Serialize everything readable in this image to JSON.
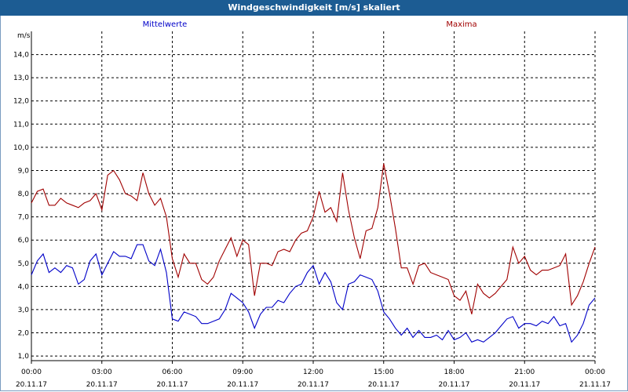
{
  "window": {
    "title": "Windgeschwindigkeit [m/s] skaliert"
  },
  "chart_data": {
    "type": "line",
    "ylabel": "m/s",
    "ylim": [
      0.8,
      15.0
    ],
    "y_ticks": [
      "1,0",
      "2,0",
      "3,0",
      "4,0",
      "5,0",
      "6,0",
      "7,0",
      "8,0",
      "9,0",
      "10,0",
      "11,0",
      "12,0",
      "13,0",
      "14,0"
    ],
    "x_ticks": [
      {
        "time": "00:00",
        "date": "20.11.17"
      },
      {
        "time": "03:00",
        "date": "20.11.17"
      },
      {
        "time": "06:00",
        "date": "20.11.17"
      },
      {
        "time": "09:00",
        "date": "20.11.17"
      },
      {
        "time": "12:00",
        "date": "20.11.17"
      },
      {
        "time": "15:00",
        "date": "20.11.17"
      },
      {
        "time": "18:00",
        "date": "20.11.17"
      },
      {
        "time": "21:00",
        "date": "20.11.17"
      },
      {
        "time": "00:00",
        "date": "21.11.17"
      }
    ],
    "xlim_hours": [
      0,
      24
    ],
    "grid": true,
    "series": [
      {
        "name": "Mittelwerte",
        "color": "#0000c8",
        "points": [
          [
            0,
            4.5
          ],
          [
            0.25,
            5.1
          ],
          [
            0.5,
            5.4
          ],
          [
            0.75,
            4.6
          ],
          [
            1,
            4.8
          ],
          [
            1.25,
            4.6
          ],
          [
            1.5,
            4.9
          ],
          [
            1.75,
            4.8
          ],
          [
            2,
            4.1
          ],
          [
            2.25,
            4.3
          ],
          [
            2.5,
            5.1
          ],
          [
            2.75,
            5.4
          ],
          [
            3,
            4.5
          ],
          [
            3.25,
            5.0
          ],
          [
            3.5,
            5.5
          ],
          [
            3.75,
            5.3
          ],
          [
            4,
            5.3
          ],
          [
            4.25,
            5.2
          ],
          [
            4.5,
            5.8
          ],
          [
            4.75,
            5.8
          ],
          [
            5,
            5.1
          ],
          [
            5.25,
            4.9
          ],
          [
            5.5,
            5.6
          ],
          [
            5.75,
            4.6
          ],
          [
            6,
            2.6
          ],
          [
            6.25,
            2.5
          ],
          [
            6.5,
            2.9
          ],
          [
            6.75,
            2.8
          ],
          [
            7,
            2.7
          ],
          [
            7.25,
            2.4
          ],
          [
            7.5,
            2.4
          ],
          [
            7.75,
            2.5
          ],
          [
            8,
            2.6
          ],
          [
            8.25,
            3.0
          ],
          [
            8.5,
            3.7
          ],
          [
            8.75,
            3.5
          ],
          [
            9,
            3.3
          ],
          [
            9.25,
            2.9
          ],
          [
            9.5,
            2.2
          ],
          [
            9.75,
            2.8
          ],
          [
            10,
            3.1
          ],
          [
            10.25,
            3.1
          ],
          [
            10.5,
            3.4
          ],
          [
            10.75,
            3.3
          ],
          [
            11,
            3.7
          ],
          [
            11.25,
            4.0
          ],
          [
            11.5,
            4.1
          ],
          [
            11.75,
            4.6
          ],
          [
            12,
            4.9
          ],
          [
            12.25,
            4.1
          ],
          [
            12.5,
            4.6
          ],
          [
            12.75,
            4.2
          ],
          [
            13,
            3.3
          ],
          [
            13.25,
            3.0
          ],
          [
            13.5,
            4.1
          ],
          [
            13.75,
            4.2
          ],
          [
            14,
            4.5
          ],
          [
            14.25,
            4.4
          ],
          [
            14.5,
            4.3
          ],
          [
            14.75,
            3.8
          ],
          [
            15,
            2.9
          ],
          [
            15.25,
            2.6
          ],
          [
            15.5,
            2.2
          ],
          [
            15.75,
            1.9
          ],
          [
            16,
            2.2
          ],
          [
            16.25,
            1.8
          ],
          [
            16.5,
            2.1
          ],
          [
            16.75,
            1.8
          ],
          [
            17,
            1.8
          ],
          [
            17.25,
            1.9
          ],
          [
            17.5,
            1.7
          ],
          [
            17.75,
            2.1
          ],
          [
            18,
            1.7
          ],
          [
            18.25,
            1.8
          ],
          [
            18.5,
            2.0
          ],
          [
            18.75,
            1.6
          ],
          [
            19,
            1.7
          ],
          [
            19.25,
            1.6
          ],
          [
            19.5,
            1.8
          ],
          [
            19.75,
            2.0
          ],
          [
            20,
            2.3
          ],
          [
            20.25,
            2.6
          ],
          [
            20.5,
            2.7
          ],
          [
            20.75,
            2.2
          ],
          [
            21,
            2.4
          ],
          [
            21.25,
            2.4
          ],
          [
            21.5,
            2.3
          ],
          [
            21.75,
            2.5
          ],
          [
            22,
            2.4
          ],
          [
            22.25,
            2.7
          ],
          [
            22.5,
            2.3
          ],
          [
            22.75,
            2.4
          ],
          [
            23,
            1.6
          ],
          [
            23.25,
            1.9
          ],
          [
            23.5,
            2.4
          ],
          [
            23.75,
            3.2
          ],
          [
            24,
            3.5
          ]
        ]
      },
      {
        "name": "Maxima",
        "color": "#a00000",
        "points": [
          [
            0,
            7.6
          ],
          [
            0.25,
            8.1
          ],
          [
            0.5,
            8.2
          ],
          [
            0.75,
            7.5
          ],
          [
            1,
            7.5
          ],
          [
            1.25,
            7.8
          ],
          [
            1.5,
            7.6
          ],
          [
            1.75,
            7.5
          ],
          [
            2,
            7.4
          ],
          [
            2.25,
            7.6
          ],
          [
            2.5,
            7.7
          ],
          [
            2.75,
            8.0
          ],
          [
            3,
            7.3
          ],
          [
            3.25,
            8.8
          ],
          [
            3.5,
            9.0
          ],
          [
            3.75,
            8.6
          ],
          [
            4,
            8.0
          ],
          [
            4.25,
            7.9
          ],
          [
            4.5,
            7.7
          ],
          [
            4.75,
            8.9
          ],
          [
            5,
            8.0
          ],
          [
            5.25,
            7.5
          ],
          [
            5.5,
            7.8
          ],
          [
            5.75,
            7.0
          ],
          [
            6,
            5.2
          ],
          [
            6.25,
            4.4
          ],
          [
            6.5,
            5.4
          ],
          [
            6.75,
            5.0
          ],
          [
            7,
            5.0
          ],
          [
            7.25,
            4.3
          ],
          [
            7.5,
            4.1
          ],
          [
            7.75,
            4.4
          ],
          [
            8,
            5.1
          ],
          [
            8.25,
            5.6
          ],
          [
            8.5,
            6.1
          ],
          [
            8.75,
            5.3
          ],
          [
            9,
            6.0
          ],
          [
            9.25,
            5.8
          ],
          [
            9.5,
            3.6
          ],
          [
            9.75,
            5.0
          ],
          [
            10,
            5.0
          ],
          [
            10.25,
            4.9
          ],
          [
            10.5,
            5.5
          ],
          [
            10.75,
            5.6
          ],
          [
            11,
            5.5
          ],
          [
            11.25,
            6.0
          ],
          [
            11.5,
            6.3
          ],
          [
            11.75,
            6.4
          ],
          [
            12,
            7.0
          ],
          [
            12.25,
            8.1
          ],
          [
            12.5,
            7.2
          ],
          [
            12.75,
            7.4
          ],
          [
            13,
            6.8
          ],
          [
            13.25,
            8.9
          ],
          [
            13.5,
            7.3
          ],
          [
            13.75,
            6.1
          ],
          [
            14,
            5.2
          ],
          [
            14.25,
            6.4
          ],
          [
            14.5,
            6.5
          ],
          [
            14.75,
            7.4
          ],
          [
            15,
            9.3
          ],
          [
            15.25,
            8.0
          ],
          [
            15.5,
            6.5
          ],
          [
            15.75,
            4.8
          ],
          [
            16,
            4.8
          ],
          [
            16.25,
            4.1
          ],
          [
            16.5,
            4.9
          ],
          [
            16.75,
            5.0
          ],
          [
            17,
            4.6
          ],
          [
            17.25,
            4.5
          ],
          [
            17.5,
            4.4
          ],
          [
            17.75,
            4.3
          ],
          [
            18,
            3.6
          ],
          [
            18.25,
            3.4
          ],
          [
            18.5,
            3.8
          ],
          [
            18.75,
            2.8
          ],
          [
            19,
            4.1
          ],
          [
            19.25,
            3.7
          ],
          [
            19.5,
            3.5
          ],
          [
            19.75,
            3.7
          ],
          [
            20,
            4.0
          ],
          [
            20.25,
            4.3
          ],
          [
            20.5,
            5.7
          ],
          [
            20.75,
            5.0
          ],
          [
            21,
            5.3
          ],
          [
            21.25,
            4.7
          ],
          [
            21.5,
            4.5
          ],
          [
            21.75,
            4.7
          ],
          [
            22,
            4.7
          ],
          [
            22.25,
            4.8
          ],
          [
            22.5,
            4.9
          ],
          [
            22.75,
            5.4
          ],
          [
            23,
            3.2
          ],
          [
            23.25,
            3.6
          ],
          [
            23.5,
            4.2
          ],
          [
            23.75,
            5.0
          ],
          [
            24,
            5.7
          ]
        ]
      }
    ]
  }
}
